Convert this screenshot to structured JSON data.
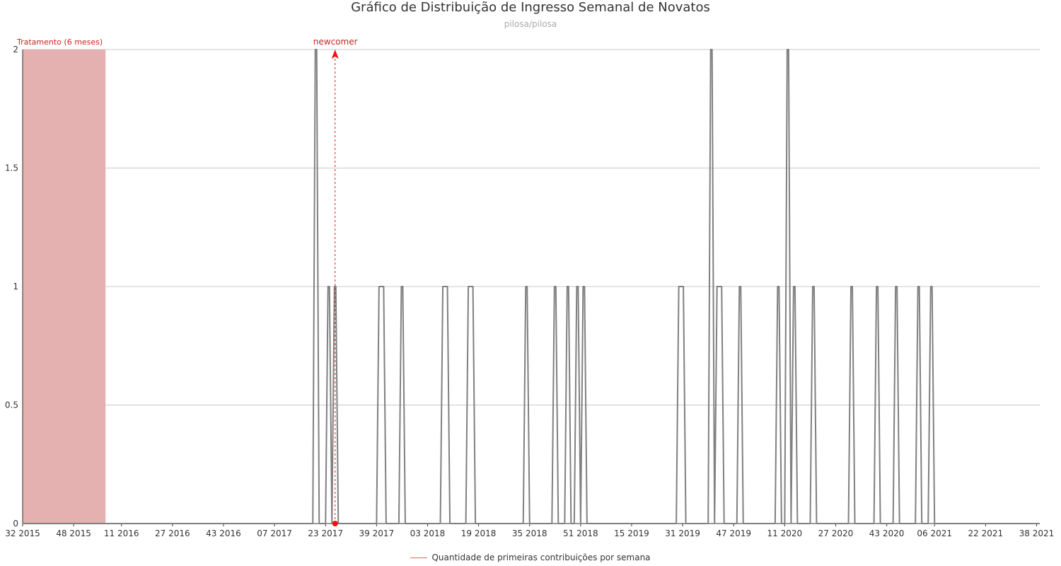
{
  "title": "Gráfico de Distribuição de Ingresso Semanal de Novatos",
  "subtitle": "pilosa/pilosa",
  "legend": {
    "label": "Quantidade de primeiras contribuições por semana"
  },
  "annotations": {
    "treatment_label": "Tratamento (6 meses)",
    "newcomer_label": "newcomer"
  },
  "colors": {
    "line": "#808080",
    "treatment_band": "#e5b0b0",
    "annotation": "#cc2222",
    "marker": "#ee1111",
    "grid": "#c8c8c8",
    "legend_line": "#e06666"
  },
  "chart_data": {
    "type": "line",
    "title": "Gráfico de Distribuição de Ingresso Semanal de Novatos",
    "subtitle": "pilosa/pilosa",
    "xlabel": "",
    "ylabel": "",
    "x_start_week": "32 2015",
    "x_end_week": "39 2021",
    "x_tick_labels": [
      "32 2015",
      "48 2015",
      "11 2016",
      "27 2016",
      "43 2016",
      "07 2017",
      "23 2017",
      "39 2017",
      "03 2018",
      "19 2018",
      "35 2018",
      "51 2018",
      "15 2019",
      "31 2019",
      "47 2019",
      "11 2020",
      "27 2020",
      "43 2020",
      "06 2021",
      "22 2021",
      "38 2021"
    ],
    "ylim": [
      0,
      2
    ],
    "y_ticks": [
      "0",
      "0.5",
      "1",
      "1.5",
      "2"
    ],
    "grid": "horizontal",
    "legend_position": "bottom",
    "treatment_period": {
      "label": "Tratamento (6 meses)",
      "from": "32 2015",
      "to": "58 2015"
    },
    "newcomer_week": "26 2017",
    "series": [
      {
        "name": "Quantidade de primeiras contribuições por semana",
        "points": [
          {
            "week": "20 2017",
            "value": 2
          },
          {
            "week": "24 2017",
            "value": 1
          },
          {
            "week": "26 2017",
            "value": 1
          },
          {
            "week": "40 2017",
            "value": 1
          },
          {
            "week": "41 2017",
            "value": 1
          },
          {
            "week": "47 2017",
            "value": 1
          },
          {
            "week": "08 2018",
            "value": 1
          },
          {
            "week": "09 2018",
            "value": 1
          },
          {
            "week": "16 2018",
            "value": 1
          },
          {
            "week": "17 2018",
            "value": 1
          },
          {
            "week": "34 2018",
            "value": 1
          },
          {
            "week": "43 2018",
            "value": 1
          },
          {
            "week": "47 2018",
            "value": 1
          },
          {
            "week": "50 2018",
            "value": 1
          },
          {
            "week": "52 2018",
            "value": 1
          },
          {
            "week": "30 2019",
            "value": 1
          },
          {
            "week": "31 2019",
            "value": 1
          },
          {
            "week": "40 2019",
            "value": 2
          },
          {
            "week": "42 2019",
            "value": 1
          },
          {
            "week": "43 2019",
            "value": 1
          },
          {
            "week": "49 2019",
            "value": 1
          },
          {
            "week": "09 2020",
            "value": 1
          },
          {
            "week": "12 2020",
            "value": 2
          },
          {
            "week": "14 2020",
            "value": 1
          },
          {
            "week": "20 2020",
            "value": 1
          },
          {
            "week": "32 2020",
            "value": 1
          },
          {
            "week": "40 2020",
            "value": 1
          },
          {
            "week": "46 2020",
            "value": 1
          },
          {
            "week": "01 2021",
            "value": 1
          },
          {
            "week": "05 2021",
            "value": 1
          }
        ]
      }
    ]
  }
}
